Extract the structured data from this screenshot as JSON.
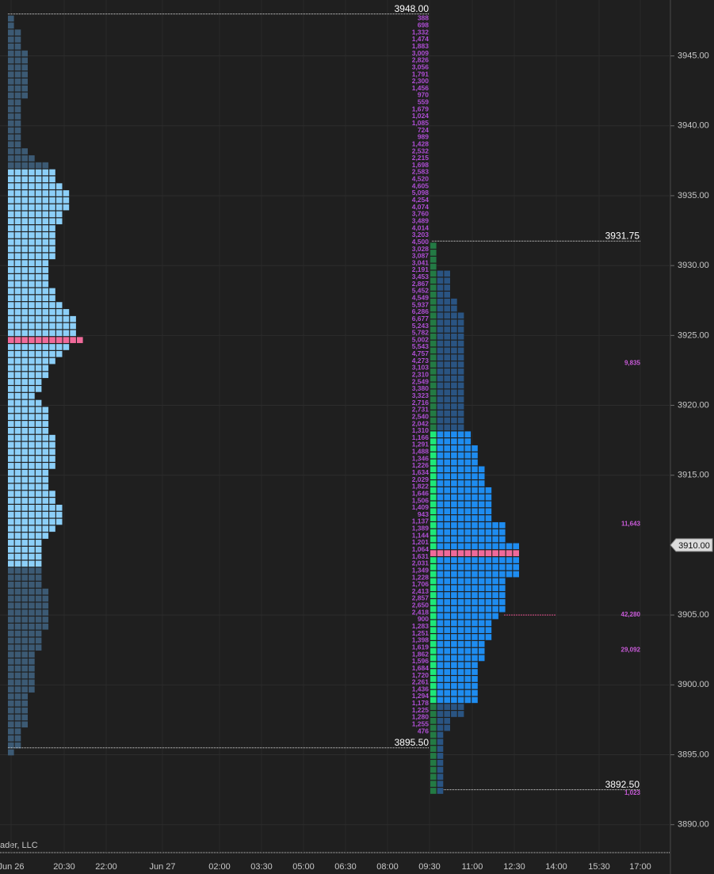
{
  "chart_data": {
    "type": "volume-profile",
    "ylim": [
      3888,
      3949
    ],
    "yticks": [
      {
        "value": 3945,
        "label": "3945.00"
      },
      {
        "value": 3940,
        "label": "3940.00"
      },
      {
        "value": 3935,
        "label": "3935.00"
      },
      {
        "value": 3930,
        "label": "3930.00"
      },
      {
        "value": 3925,
        "label": "3925.00"
      },
      {
        "value": 3920,
        "label": "3920.00"
      },
      {
        "value": 3915,
        "label": "3915.00"
      },
      {
        "value": 3905,
        "label": "3905.00"
      },
      {
        "value": 3900,
        "label": "3900.00"
      },
      {
        "value": 3895,
        "label": "3895.00"
      },
      {
        "value": 3890,
        "label": "3890.00"
      }
    ],
    "last_price": {
      "value": 3910,
      "label": "3910.00"
    },
    "time_labels": [
      "Jun 26",
      "20:30",
      "22:00",
      "Jun 27",
      "02:00",
      "03:30",
      "05:00",
      "06:30",
      "08:00",
      "09:30",
      "11:00",
      "12:30",
      "14:00",
      "15:30",
      "17:00"
    ],
    "watermark": "ader, LLC",
    "profiles": [
      {
        "high": {
          "value": 3948,
          "label": "3948.00"
        },
        "low": {
          "value": 3895.5,
          "label": "3895.50"
        },
        "poc": 3925,
        "value_area": [
          3909,
          3937
        ],
        "colors": {
          "outside": "#3c5a74",
          "value_area": "#8ccff8",
          "poc": "#f06a9a"
        },
        "blocks": [
          1,
          1,
          2,
          2,
          2,
          3,
          3,
          3,
          3,
          3,
          3,
          3,
          2,
          2,
          2,
          2,
          2,
          2,
          2,
          3,
          4,
          6,
          7,
          7,
          8,
          9,
          9,
          9,
          8,
          8,
          7,
          7,
          7,
          7,
          7,
          6,
          6,
          6,
          6,
          7,
          7,
          8,
          9,
          10,
          10,
          10,
          11,
          9,
          8,
          7,
          6,
          6,
          5,
          5,
          4,
          5,
          6,
          6,
          6,
          6,
          7,
          7,
          7,
          7,
          7,
          6,
          6,
          6,
          7,
          7,
          8,
          8,
          8,
          7,
          6,
          5,
          5,
          5,
          5,
          5,
          5,
          5,
          6,
          6,
          6,
          6,
          6,
          6,
          5,
          5,
          5,
          4,
          4,
          4,
          4,
          4,
          4,
          3,
          3,
          3,
          3,
          3,
          2,
          2,
          2,
          1
        ]
      },
      {
        "high": {
          "value": 3931.75,
          "label": "3931.75"
        },
        "low": {
          "value": 3892.5,
          "label": "3892.50"
        },
        "poc": 3910,
        "value_area": [
          3899,
          3918.5
        ],
        "colors": {
          "outside": "#2a5482",
          "value_area": "#1e8cf0",
          "poc": "#f06a9a",
          "first_outside": "#237a44",
          "first_value_area": "#1ee878"
        },
        "blocks": [
          1,
          1,
          1,
          1,
          3,
          3,
          3,
          3,
          4,
          4,
          5,
          5,
          5,
          5,
          5,
          5,
          5,
          5,
          5,
          5,
          5,
          5,
          5,
          5,
          5,
          5,
          5,
          6,
          6,
          7,
          7,
          7,
          8,
          8,
          8,
          9,
          9,
          9,
          9,
          9,
          11,
          11,
          11,
          13,
          13,
          13,
          13,
          13,
          11,
          11,
          11,
          11,
          11,
          10,
          9,
          9,
          9,
          8,
          8,
          8,
          7,
          7,
          7,
          7,
          7,
          7,
          5,
          5,
          3,
          3,
          2,
          2,
          2,
          2,
          2,
          2,
          2,
          2,
          2
        ]
      }
    ],
    "volume_labels": [
      "388",
      "698",
      "1,332",
      "1,474",
      "1,883",
      "3,009",
      "2,826",
      "3,056",
      "1,791",
      "2,300",
      "1,456",
      "970",
      "559",
      "1,679",
      "1,024",
      "1,085",
      "724",
      "989",
      "1,428",
      "2,532",
      "2,215",
      "1,698",
      "2,583",
      "4,520",
      "4,605",
      "5,098",
      "4,254",
      "4,074",
      "3,760",
      "3,489",
      "4,014",
      "3,203",
      "4,500",
      "3,028",
      "3,087",
      "3,041",
      "2,191",
      "3,453",
      "2,867",
      "5,452",
      "4,549",
      "5,937",
      "6,286",
      "6,677",
      "5,243",
      "5,782",
      "5,002",
      "5,543",
      "4,757",
      "4,273",
      "3,103",
      "2,310",
      "2,549",
      "3,380",
      "3,323",
      "2,716",
      "2,731",
      "2,540",
      "2,042",
      "1,310",
      "1,166",
      "1,291",
      "1,488",
      "1,346",
      "1,226",
      "1,634",
      "2,029",
      "1,822",
      "1,646",
      "1,506",
      "1,409",
      "943",
      "1,137",
      "1,389",
      "1,144",
      "1,201",
      "1,064",
      "1,631",
      "2,031",
      "1,349",
      "1,228",
      "1,706",
      "2,413",
      "2,857",
      "2,650",
      "2,418",
      "900",
      "1,283",
      "1,251",
      "1,398",
      "1,619",
      "1,862",
      "1,596",
      "1,684",
      "1,720",
      "2,261",
      "1,436",
      "1,294",
      "1,178",
      "1,225",
      "1,280",
      "1,255",
      "476"
    ],
    "annotations": [
      {
        "price": 3923,
        "label": "9,835"
      },
      {
        "price": 3911.5,
        "label": "11,643"
      },
      {
        "price": 3905,
        "label": "42,280"
      },
      {
        "price": 3902.5,
        "label": "29,092"
      },
      {
        "price": 3892.25,
        "label": "1,023"
      }
    ]
  }
}
